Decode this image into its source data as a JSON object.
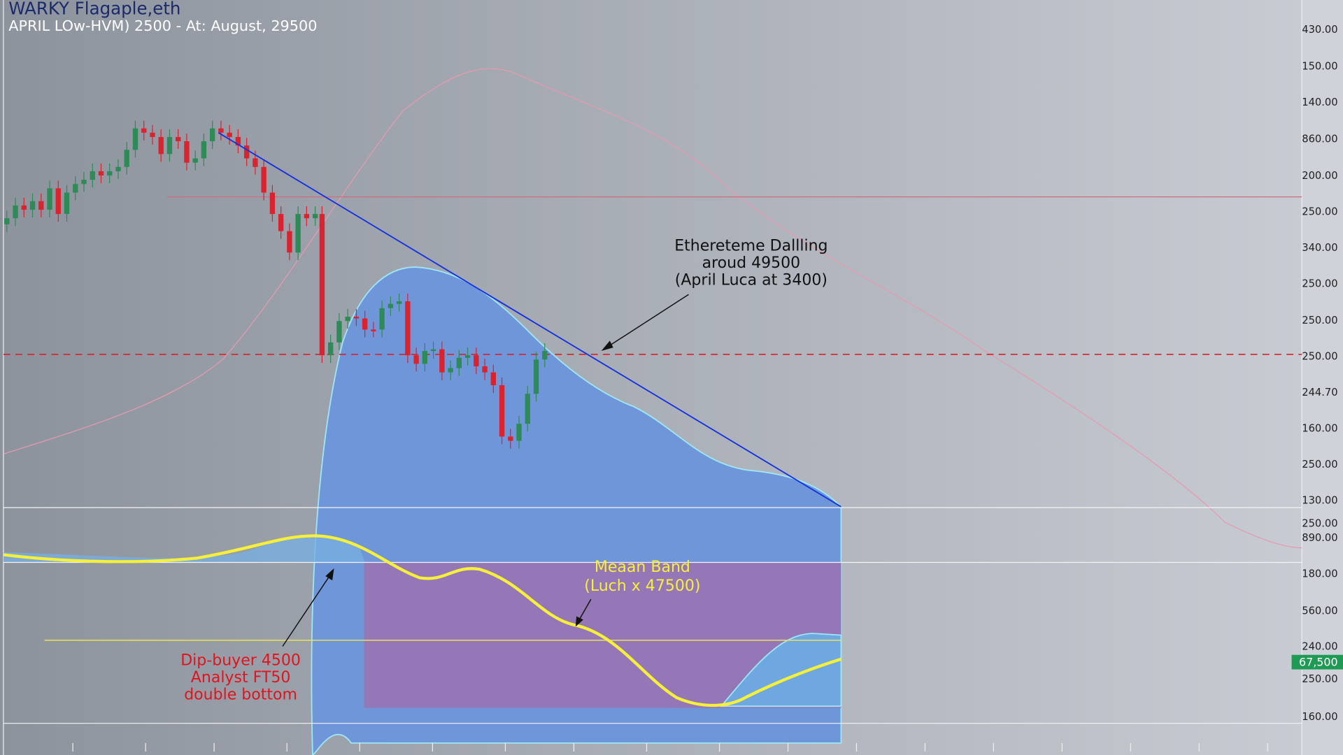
{
  "header": {
    "title": "WARKY Flagaple,eth",
    "subtitle": "APRIL LOw-HVM) 2500 - At: August, 29500"
  },
  "price_axis": [
    "430.00",
    "150.00",
    "140.00",
    "860.00",
    "200.00",
    "250.00",
    "340.00",
    "250.00",
    "250.00",
    "250.00",
    "244.70",
    "160.00",
    "250.00",
    "130.00",
    "250.00",
    "890.00",
    "180.00",
    "560.00",
    "240.00",
    "250.00",
    "160.00"
  ],
  "price_badge": "67,500",
  "annotations": [
    {
      "lines": [
        "Ethereteme Dallling",
        "aroud 49500",
        "(April Luca at 3400)"
      ]
    },
    {
      "lines": [
        "Meaan Band",
        "(Luch x 47500)"
      ]
    },
    {
      "lines": [
        "Dip-buyer 4500",
        "Analyst FT50",
        "double bottom"
      ]
    }
  ]
}
